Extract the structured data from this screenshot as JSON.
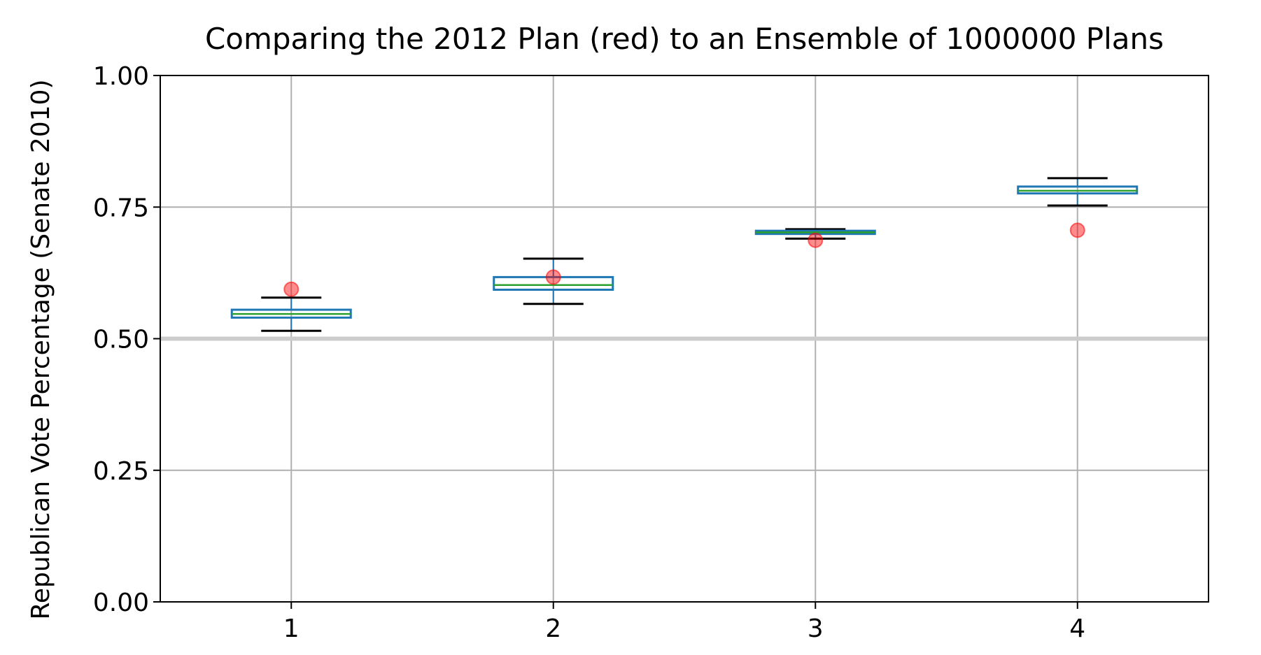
{
  "chart_data": {
    "type": "box",
    "title": "Comparing the 2012 Plan (red) to an Ensemble of 1000000 Plans",
    "xlabel": "",
    "ylabel": "Republican Vote Percentage (Senate 2010)",
    "categories": [
      "1",
      "2",
      "3",
      "4"
    ],
    "xlim": [
      0.5,
      4.5
    ],
    "ylim": [
      0.0,
      1.0
    ],
    "yticks": [
      "0.00",
      "0.25",
      "0.50",
      "0.75",
      "1.00"
    ],
    "grid": true,
    "reference_line": 0.5,
    "boxes": [
      {
        "category": "1",
        "whisker_low": 0.515,
        "q1": 0.54,
        "median": 0.547,
        "q3": 0.555,
        "whisker_high": 0.578
      },
      {
        "category": "2",
        "whisker_low": 0.566,
        "q1": 0.593,
        "median": 0.602,
        "q3": 0.617,
        "whisker_high": 0.652
      },
      {
        "category": "3",
        "whisker_low": 0.69,
        "q1": 0.699,
        "median": 0.702,
        "q3": 0.705,
        "whisker_high": 0.708
      },
      {
        "category": "4",
        "whisker_low": 0.753,
        "q1": 0.776,
        "median": 0.781,
        "q3": 0.789,
        "whisker_high": 0.805
      }
    ],
    "plan_2012": [
      {
        "category": "1",
        "value": 0.594
      },
      {
        "category": "2",
        "value": 0.617
      },
      {
        "category": "3",
        "value": 0.687
      },
      {
        "category": "4",
        "value": 0.706
      }
    ],
    "colors": {
      "box": "#1f77b4",
      "median": "#2ca02c",
      "whisker": "#000000",
      "marker": "#ff0000",
      "grid": "#b0b0b0",
      "reference_line": "#cccccc"
    }
  }
}
